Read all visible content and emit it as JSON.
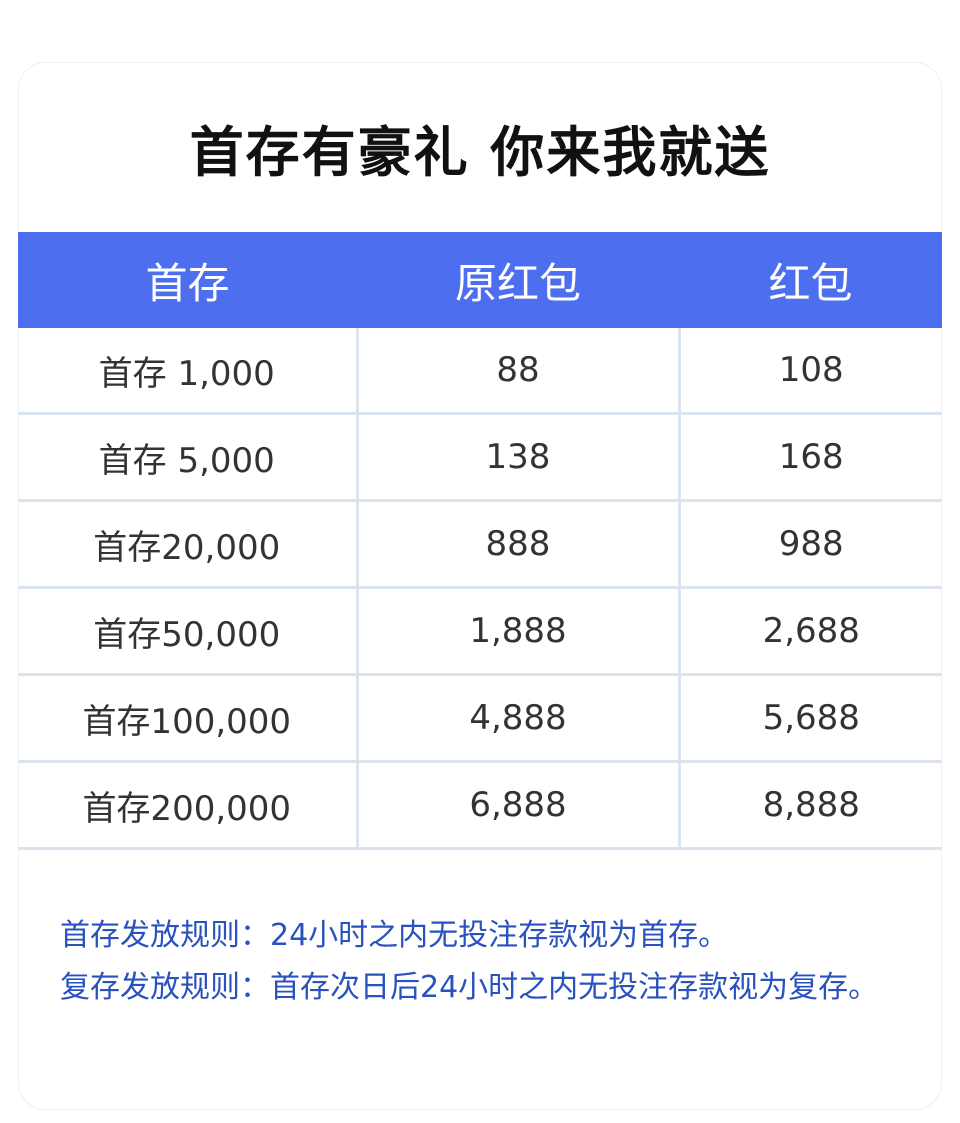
{
  "title": "首存有豪礼 你来我就送",
  "table": {
    "headers": [
      "首存",
      "原红包",
      "红包"
    ],
    "rows": [
      [
        "首存 1,000",
        "88",
        "108"
      ],
      [
        "首存 5,000",
        "138",
        "168"
      ],
      [
        "首存20,000",
        "888",
        "988"
      ],
      [
        "首存50,000",
        "1,888",
        "2,688"
      ],
      [
        "首存100,000",
        "4,888",
        "5,688"
      ],
      [
        "首存200,000",
        "6,888",
        "8,888"
      ]
    ]
  },
  "rules": [
    "首存发放规则：24小时之内无投注存款视为首存。",
    "复存发放规则：首存次日后24小时之内无投注存款视为复存。"
  ],
  "colors": {
    "header": "#4d6fef",
    "rules_text": "#2a52be",
    "grid": "#dbe3ee"
  }
}
